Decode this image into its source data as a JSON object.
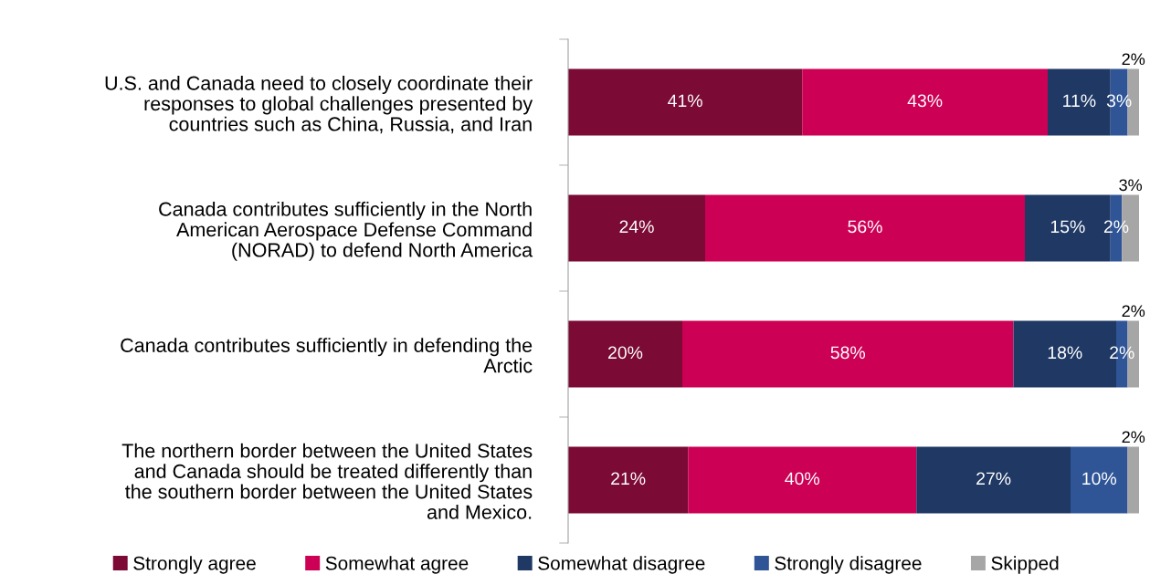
{
  "chart_data": {
    "type": "bar",
    "orientation": "horizontal",
    "stacked": true,
    "grid": false,
    "legend": "bottom",
    "categories": [
      "U.S. and Canada need to closely coordinate their\nresponses to global challenges presented by\ncountries such as China, Russia, and Iran",
      "Canada contributes sufficiently in the North\nAmerican Aerospace Defense Command\n(NORAD) to defend North America",
      "Canada contributes sufficiently in defending the\nArctic",
      "The northern border between the United States\nand Canada should be treated differently than\nthe southern border between the United States\nand Mexico."
    ],
    "series": [
      {
        "name": "Strongly agree",
        "color": "#7b0a34",
        "values": [
          41,
          24,
          20,
          21
        ],
        "value_labels": [
          "41%",
          "24%",
          "20%",
          "21%"
        ]
      },
      {
        "name": "Somewhat agree",
        "color": "#cc0055",
        "values": [
          43,
          56,
          58,
          40
        ],
        "value_labels": [
          "43%",
          "56%",
          "58%",
          "40%"
        ]
      },
      {
        "name": "Somewhat disagree",
        "color": "#1f3864",
        "values": [
          11,
          15,
          18,
          27
        ],
        "value_labels": [
          "11%",
          "15%",
          "18%",
          "27%"
        ]
      },
      {
        "name": "Strongly disagree",
        "color": "#2f5597",
        "values": [
          3,
          2,
          2,
          10
        ],
        "value_labels": [
          "3%",
          "2%",
          "2%",
          "10%"
        ]
      },
      {
        "name": "Skipped",
        "color": "#a6a6a6",
        "values": [
          2,
          3,
          2,
          2
        ],
        "value_labels": [
          "2%",
          "3%",
          "2%",
          "2%"
        ]
      }
    ]
  }
}
